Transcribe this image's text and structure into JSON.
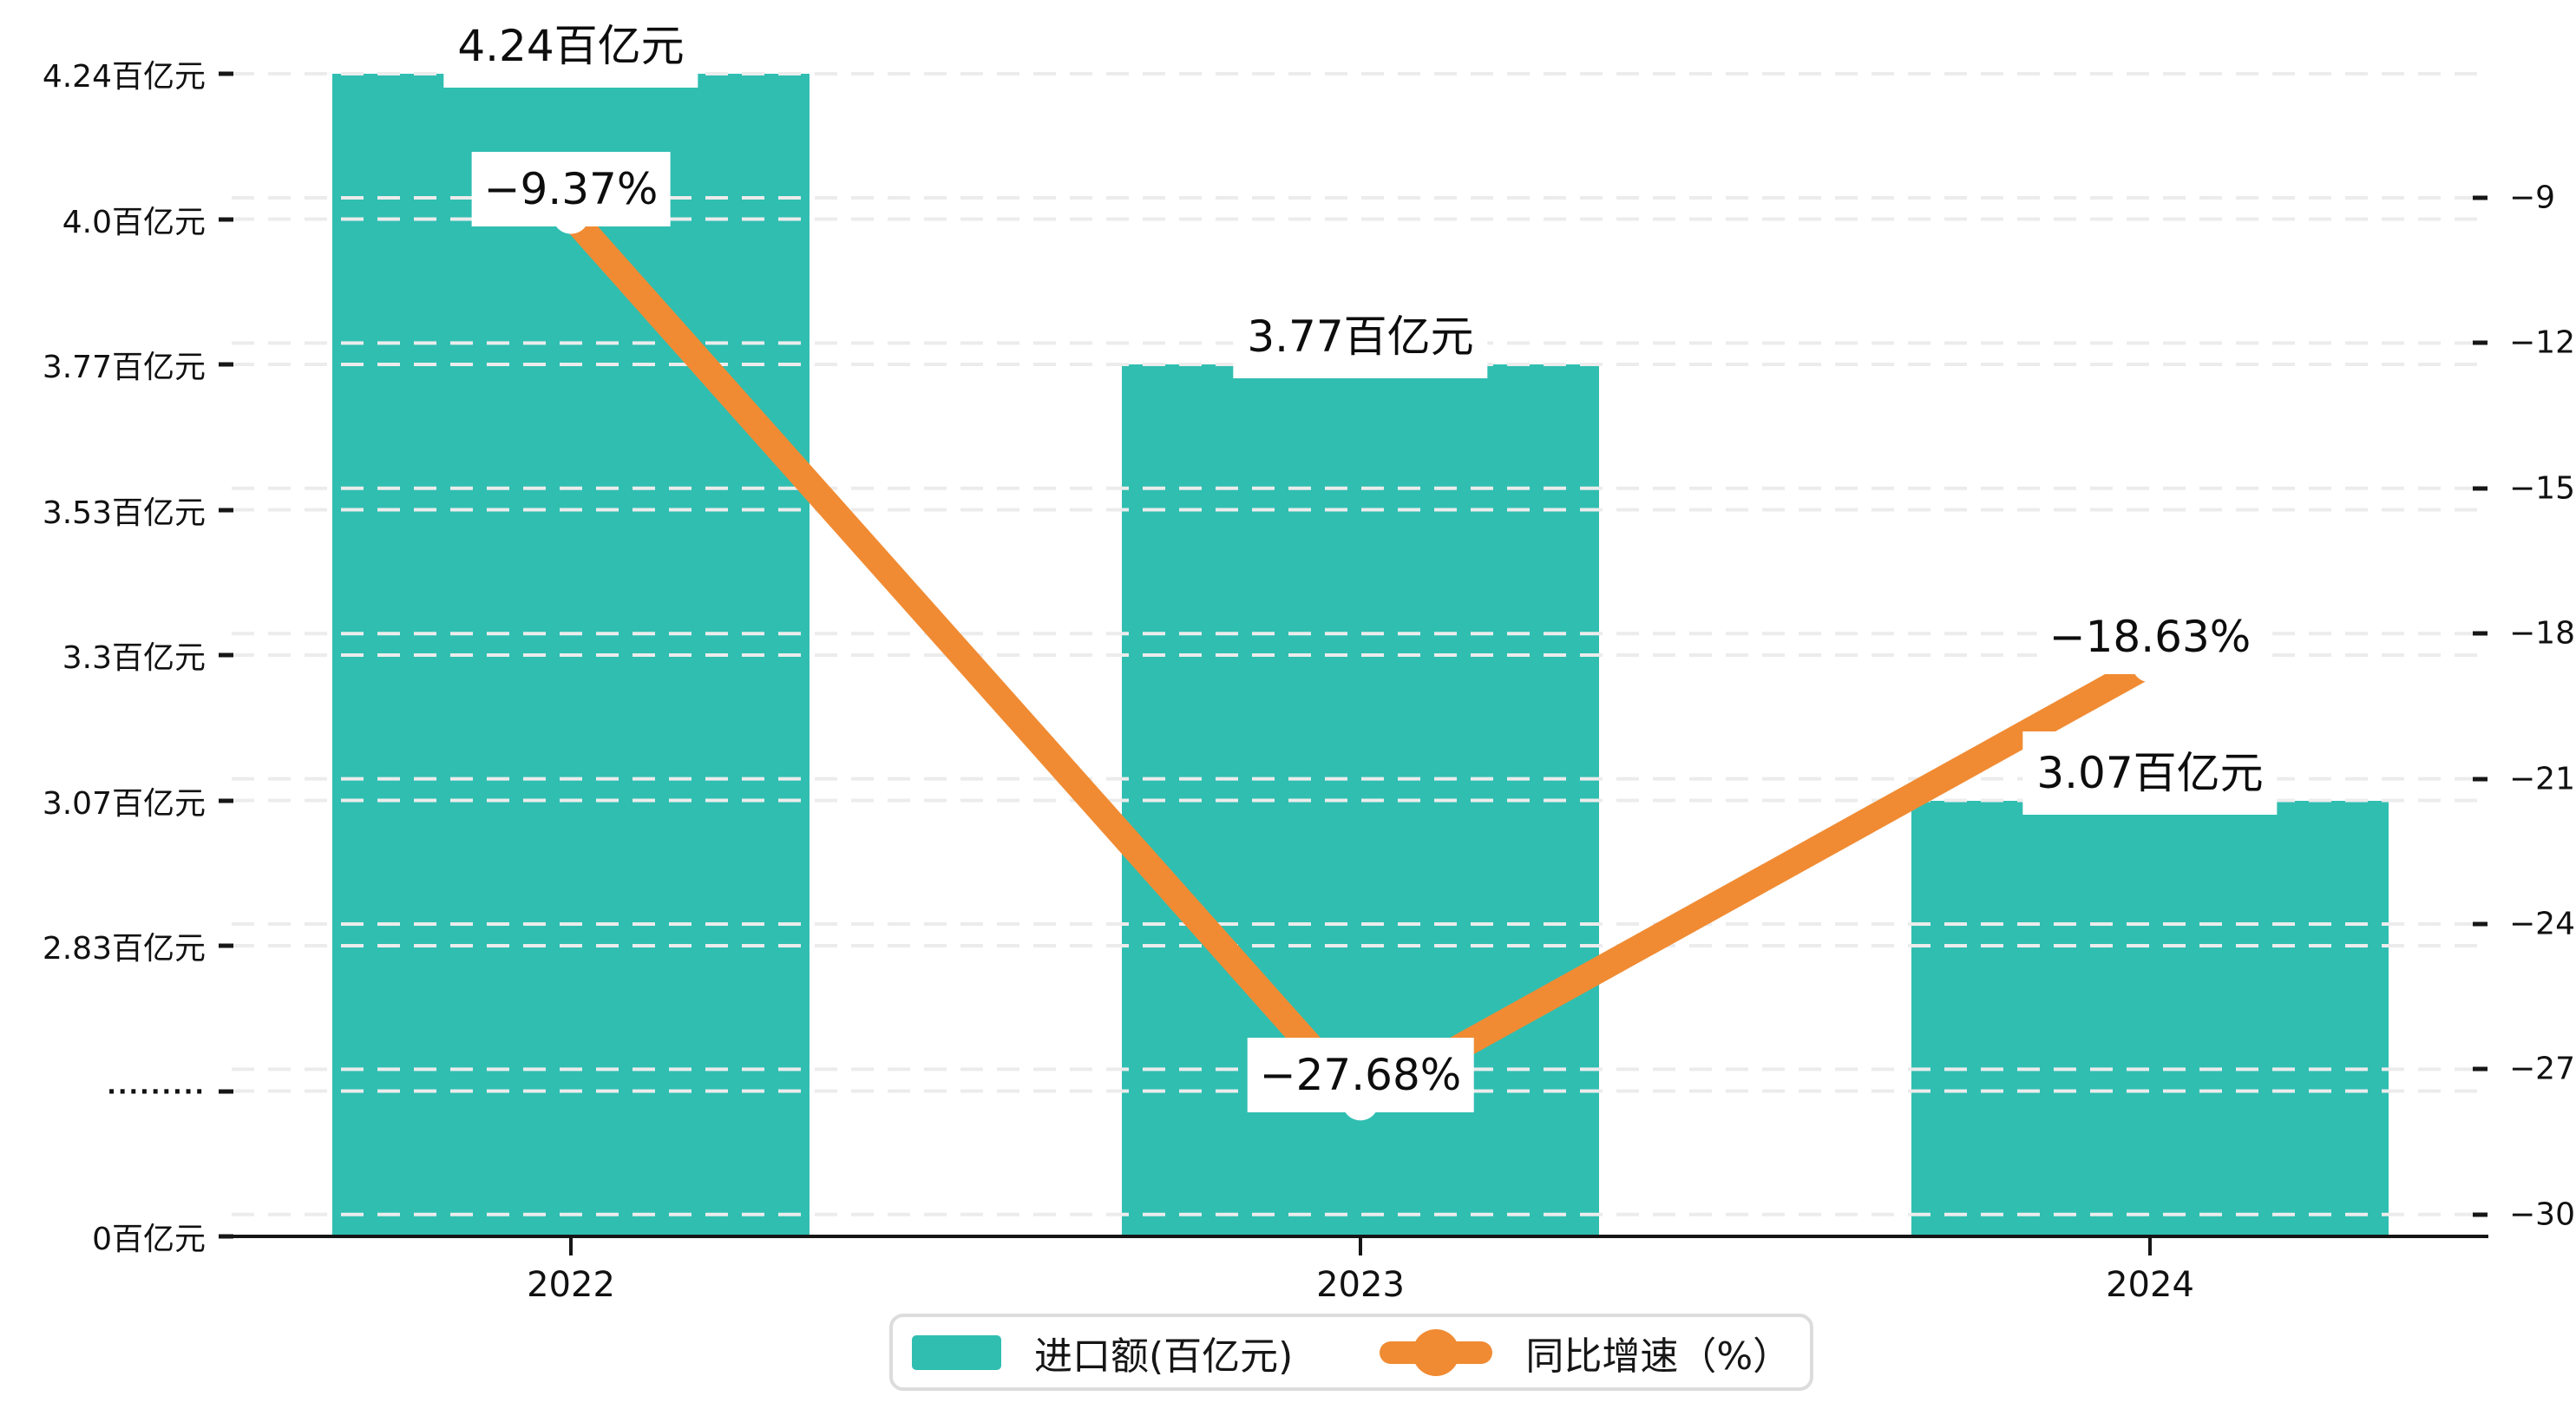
{
  "chart_data": {
    "type": "bar",
    "subtype": "bar-line-combo",
    "title": "",
    "categories": [
      "2022",
      "2023",
      "2024"
    ],
    "series": [
      {
        "name": "进口额(百亿元)",
        "type": "bar",
        "yaxis": "left",
        "color": "#30beb1",
        "values": [
          4.24,
          3.77,
          3.07
        ],
        "data_labels": [
          "4.24百亿元",
          "3.77百亿元",
          "3.07百亿元"
        ]
      },
      {
        "name": "同比增速（%）",
        "type": "line",
        "yaxis": "right",
        "color": "#f08b33",
        "values": [
          -9.37,
          -27.68,
          -18.63
        ],
        "data_labels": [
          "−9.37%",
          "−27.68%",
          "−18.63%"
        ]
      }
    ],
    "left_axis": {
      "unit": "百亿元",
      "tick_labels": [
        "4.24百亿元",
        "4.0百亿元",
        "3.77百亿元",
        "3.53百亿元",
        "3.3百亿元",
        "3.07百亿元",
        "2.83百亿元",
        "·········",
        "0百亿元"
      ],
      "tick_values": [
        4.24,
        4.0,
        3.77,
        3.53,
        3.3,
        3.07,
        2.83,
        null,
        0
      ],
      "broken_axis": true
    },
    "right_axis": {
      "tick_labels": [
        "−9",
        "−12",
        "−15",
        "−18",
        "−21",
        "−24",
        "−27",
        "−30"
      ],
      "tick_values": [
        -9,
        -12,
        -15,
        -18,
        -21,
        -24,
        -27,
        -30
      ],
      "range_top": -9,
      "range_bottom": -30
    },
    "grid": true,
    "legend_position": "bottom",
    "legend": {
      "bar_label": "进口额(百亿元)",
      "line_label": "同比增速（%）"
    },
    "colors": {
      "bar": "#30beb1",
      "line": "#f08b33",
      "text": "#111111",
      "gridline": "#ececec",
      "axis": "#161616",
      "legend_border": "#dcdcdc",
      "label_box_bg": "#ffffff"
    }
  }
}
